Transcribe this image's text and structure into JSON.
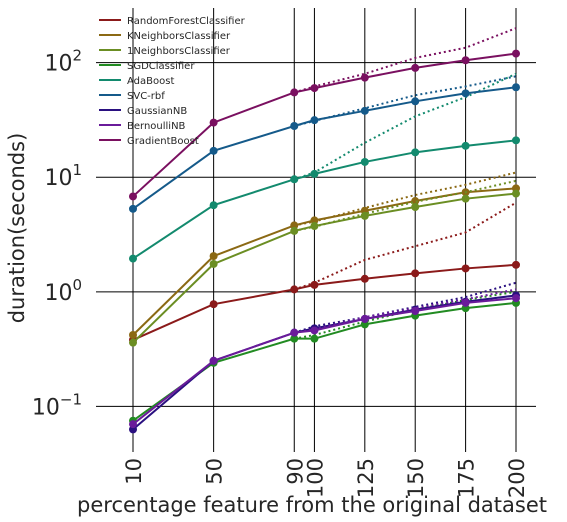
{
  "chart_data": {
    "type": "line",
    "xlabel": "percentage feature from the original dataset",
    "ylabel": "duration(seconds)",
    "x_scale": "linear",
    "y_scale": "log",
    "xlim": [
      10,
      200
    ],
    "ylim": [
      0.04,
      300
    ],
    "x_ticks": [
      10,
      50,
      90,
      100,
      125,
      150,
      175,
      200
    ],
    "x_tick_labels": [
      "10",
      "50",
      "90",
      "100",
      "125",
      "150",
      "175",
      "200"
    ],
    "y_ticks": [
      0.1,
      1,
      10,
      100
    ],
    "y_tick_labels": [
      {
        "base": "10",
        "exp": "−1"
      },
      {
        "base": "10",
        "exp": "0"
      },
      {
        "base": "10",
        "exp": "1"
      },
      {
        "base": "10",
        "exp": "2"
      }
    ],
    "grid": true,
    "legend_position": "top-left",
    "x": [
      10,
      50,
      90,
      100,
      125,
      150,
      175,
      200
    ],
    "series": [
      {
        "name": "RandomForestClassifier",
        "color": "#8b1a1a",
        "values": [
          0.38,
          0.78,
          1.05,
          1.15,
          1.3,
          1.45,
          1.6,
          1.72
        ],
        "dotted": [
          null,
          null,
          1.05,
          1.2,
          1.9,
          2.5,
          3.3,
          6.0
        ]
      },
      {
        "name": "KNeighborsClassifier",
        "color": "#8b6914",
        "values": [
          0.42,
          2.05,
          3.8,
          4.2,
          5.1,
          6.2,
          7.4,
          8.0
        ],
        "dotted": [
          null,
          null,
          3.8,
          4.1,
          5.4,
          7.0,
          8.6,
          11.0
        ]
      },
      {
        "name": "1NeighborsClassifier",
        "color": "#6b8e23",
        "values": [
          0.36,
          1.75,
          3.4,
          3.75,
          4.6,
          5.5,
          6.5,
          7.2
        ],
        "dotted": [
          null,
          null,
          3.4,
          3.7,
          4.8,
          6.1,
          7.4,
          9.3
        ]
      },
      {
        "name": "SGDClassifier",
        "color": "#228b22",
        "values": [
          0.075,
          0.24,
          0.39,
          0.39,
          0.52,
          0.62,
          0.72,
          0.8
        ],
        "dotted": [
          null,
          null,
          0.39,
          0.42,
          0.55,
          0.7,
          0.85,
          1.0
        ]
      },
      {
        "name": "AdaBoost",
        "color": "#138a6e",
        "values": [
          1.95,
          5.7,
          9.6,
          10.7,
          13.6,
          16.5,
          18.8,
          21.0
        ],
        "dotted": [
          null,
          null,
          9.6,
          11.0,
          20.0,
          34.0,
          50.0,
          80.0
        ]
      },
      {
        "name": "SVC-rbf",
        "color": "#155a8a",
        "values": [
          5.3,
          17.0,
          28.0,
          31.5,
          38.0,
          46.0,
          54.0,
          61.0
        ],
        "dotted": [
          null,
          null,
          28.0,
          31.0,
          40.0,
          52.0,
          62.0,
          76.0
        ]
      },
      {
        "name": "GaussianNB",
        "color": "#2a1080",
        "values": [
          0.063,
          0.25,
          0.44,
          0.48,
          0.58,
          0.7,
          0.82,
          0.93
        ],
        "dotted": [
          null,
          null,
          0.44,
          0.5,
          0.6,
          0.74,
          0.9,
          1.2
        ]
      },
      {
        "name": "BernoulliNB",
        "color": "#6a1b9a",
        "values": [
          0.07,
          0.25,
          0.44,
          0.46,
          0.58,
          0.68,
          0.8,
          0.88
        ],
        "dotted": [
          null,
          null,
          0.44,
          0.47,
          0.6,
          0.72,
          0.86,
          1.05
        ]
      },
      {
        "name": "GradientBoost",
        "color": "#7a1060",
        "values": [
          6.8,
          30.0,
          55.0,
          60.0,
          74.0,
          90.0,
          105.0,
          120.0
        ],
        "dotted": [
          null,
          null,
          55.0,
          62.0,
          80.0,
          110.0,
          135.0,
          200.0
        ]
      }
    ]
  }
}
